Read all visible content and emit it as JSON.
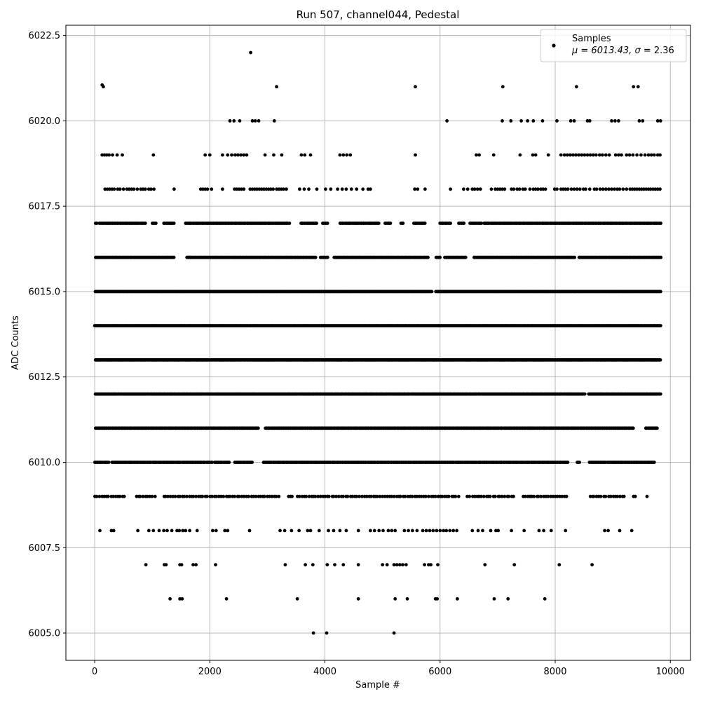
{
  "chart_data": {
    "type": "scatter",
    "title": "Run 507, channel044, Pedestal",
    "xlabel": "Sample #",
    "ylabel": "ADC Counts",
    "xlim": [
      -500,
      10350
    ],
    "ylim": [
      6004.2,
      6022.8
    ],
    "xticks": [
      0,
      2000,
      4000,
      6000,
      8000,
      10000
    ],
    "xtick_labels": [
      "0",
      "2000",
      "4000",
      "6000",
      "8000",
      "10000"
    ],
    "yticks": [
      6005.0,
      6007.5,
      6010.0,
      6012.5,
      6015.0,
      6017.5,
      6020.0,
      6022.5
    ],
    "ytick_labels": [
      "6005.0",
      "6007.5",
      "6010.0",
      "6012.5",
      "6015.0",
      "6017.5",
      "6020.0",
      "6022.5"
    ],
    "grid": true,
    "legend": {
      "placement": "top-right",
      "series_name": "Samples",
      "stats_prefix": "μ = 6013.43, ",
      "stats_sigma": "σ",
      "stats_suffix": " = 2.36"
    },
    "marker_color": "#000000",
    "n_samples": 9830,
    "mean": 6013.43,
    "sigma": 2.36,
    "series": [
      {
        "name": "Samples",
        "points": [
          [
            150,
            6021
          ],
          [
            2710,
            6022
          ],
          [
            3160,
            6021
          ],
          [
            5570,
            6021
          ],
          [
            7090,
            6021
          ],
          [
            8370,
            6021
          ],
          [
            9360,
            6021
          ],
          [
            9440,
            6021
          ],
          [
            2350,
            6020
          ],
          [
            2420,
            6020
          ],
          [
            2520,
            6020
          ],
          [
            2740,
            6020
          ],
          [
            2790,
            6020
          ],
          [
            2850,
            6020
          ],
          [
            3120,
            6020
          ],
          [
            6120,
            6020
          ],
          [
            7080,
            6020
          ],
          [
            7230,
            6020
          ],
          [
            7410,
            6020
          ],
          [
            7520,
            6020
          ],
          [
            7620,
            6020
          ],
          [
            7780,
            6020
          ],
          [
            8030,
            6020
          ],
          [
            8270,
            6020
          ],
          [
            8330,
            6020
          ],
          [
            8560,
            6020
          ],
          [
            8600,
            6020
          ],
          [
            8980,
            6020
          ],
          [
            9040,
            6020
          ],
          [
            9100,
            6020
          ],
          [
            9460,
            6020
          ],
          [
            9520,
            6020
          ],
          [
            9780,
            6020
          ],
          [
            9830,
            6020
          ],
          [
            3800,
            6005
          ],
          [
            4030,
            6005
          ],
          [
            5200,
            6005
          ],
          [
            1310,
            6006
          ],
          [
            1480,
            6006
          ],
          [
            1520,
            6006
          ],
          [
            2290,
            6006
          ],
          [
            3520,
            6006
          ],
          [
            4580,
            6006
          ],
          [
            5220,
            6006
          ],
          [
            5430,
            6006
          ],
          [
            5920,
            6006
          ],
          [
            5950,
            6006
          ],
          [
            6300,
            6006
          ],
          [
            6940,
            6006
          ],
          [
            7180,
            6006
          ],
          [
            7820,
            6006
          ],
          [
            890,
            6007
          ],
          [
            1210,
            6007
          ],
          [
            1240,
            6007
          ],
          [
            1480,
            6007
          ],
          [
            1510,
            6007
          ],
          [
            1710,
            6007
          ],
          [
            1760,
            6007
          ],
          [
            2100,
            6007
          ],
          [
            3310,
            6007
          ],
          [
            3660,
            6007
          ],
          [
            3790,
            6007
          ],
          [
            4040,
            6007
          ],
          [
            4170,
            6007
          ],
          [
            4320,
            6007
          ],
          [
            4580,
            6007
          ],
          [
            5000,
            6007
          ],
          [
            5080,
            6007
          ],
          [
            5200,
            6007
          ],
          [
            5250,
            6007
          ],
          [
            5300,
            6007
          ],
          [
            5350,
            6007
          ],
          [
            5410,
            6007
          ],
          [
            5730,
            6007
          ],
          [
            5800,
            6007
          ],
          [
            5840,
            6007
          ],
          [
            5960,
            6007
          ],
          [
            6780,
            6007
          ],
          [
            7290,
            6007
          ],
          [
            8070,
            6007
          ],
          [
            8640,
            6007
          ],
          [
            90,
            6008
          ],
          [
            290,
            6008
          ],
          [
            330,
            6008
          ],
          [
            750,
            6008
          ],
          [
            940,
            6008
          ],
          [
            1020,
            6008
          ],
          [
            1120,
            6008
          ],
          [
            1200,
            6008
          ],
          [
            1260,
            6008
          ],
          [
            1340,
            6008
          ],
          [
            1430,
            6008
          ],
          [
            1470,
            6008
          ],
          [
            1530,
            6008
          ],
          [
            1580,
            6008
          ],
          [
            1650,
            6008
          ],
          [
            1780,
            6008
          ],
          [
            2050,
            6008
          ],
          [
            2110,
            6008
          ],
          [
            2260,
            6008
          ],
          [
            2310,
            6008
          ],
          [
            2690,
            6008
          ],
          [
            3220,
            6008
          ],
          [
            3300,
            6008
          ],
          [
            3420,
            6008
          ],
          [
            3550,
            6008
          ],
          [
            3700,
            6008
          ],
          [
            3750,
            6008
          ],
          [
            3900,
            6008
          ],
          [
            4060,
            6008
          ],
          [
            4150,
            6008
          ],
          [
            4260,
            6008
          ],
          [
            4370,
            6008
          ],
          [
            4580,
            6008
          ],
          [
            4790,
            6008
          ],
          [
            4860,
            6008
          ],
          [
            4940,
            6008
          ],
          [
            5010,
            6008
          ],
          [
            5100,
            6008
          ],
          [
            5160,
            6008
          ],
          [
            5220,
            6008
          ],
          [
            5380,
            6008
          ],
          [
            5450,
            6008
          ],
          [
            5520,
            6008
          ],
          [
            5600,
            6008
          ],
          [
            5700,
            6008
          ],
          [
            5760,
            6008
          ],
          [
            5820,
            6008
          ],
          [
            5880,
            6008
          ],
          [
            5940,
            6008
          ],
          [
            6000,
            6008
          ],
          [
            6060,
            6008
          ],
          [
            6110,
            6008
          ],
          [
            6170,
            6008
          ],
          [
            6230,
            6008
          ],
          [
            6290,
            6008
          ],
          [
            6560,
            6008
          ],
          [
            6660,
            6008
          ],
          [
            6740,
            6008
          ],
          [
            6880,
            6008
          ],
          [
            6970,
            6008
          ],
          [
            7010,
            6008
          ],
          [
            7240,
            6008
          ],
          [
            7460,
            6008
          ],
          [
            7720,
            6008
          ],
          [
            7800,
            6008
          ],
          [
            7930,
            6008
          ],
          [
            8180,
            6008
          ],
          [
            8860,
            6008
          ],
          [
            8920,
            6008
          ],
          [
            9120,
            6008
          ],
          [
            9330,
            6008
          ],
          [
            130,
            6021.05
          ]
        ],
        "dense_bands": [
          {
            "y": 6009,
            "x_from": 0,
            "x_to": 9620,
            "spacing": 40,
            "gaps": [
              [
                560,
                720
              ],
              [
                1080,
                1190
              ],
              [
                3220,
                3350
              ],
              [
                3460,
                3500
              ],
              [
                6330,
                6460
              ],
              [
                7320,
                7420
              ],
              [
                8240,
                8560
              ],
              [
                9220,
                9330
              ],
              [
                9420,
                9570
              ]
            ]
          },
          {
            "y": 6010,
            "x_from": 0,
            "x_to": 9720,
            "spacing": 20,
            "gaps": [
              [
                260,
                300
              ],
              [
                2050,
                2080
              ],
              [
                2350,
                2430
              ],
              [
                2740,
                2930
              ],
              [
                8230,
                8370
              ],
              [
                8430,
                8580
              ]
            ]
          },
          {
            "y": 6011,
            "x_from": 0,
            "x_to": 9790,
            "spacing": 18,
            "gaps": [
              [
                2860,
                2950
              ],
              [
                9360,
                9560
              ]
            ]
          },
          {
            "y": 6012,
            "x_from": 0,
            "x_to": 9840,
            "spacing": 14,
            "gaps": [
              [
                8520,
                8580
              ]
            ]
          },
          {
            "y": 6013,
            "x_from": 0,
            "x_to": 9840,
            "spacing": 12,
            "gaps": []
          },
          {
            "y": 6014,
            "x_from": 0,
            "x_to": 9840,
            "spacing": 12,
            "gaps": []
          },
          {
            "y": 6015,
            "x_from": 0,
            "x_to": 9840,
            "spacing": 12,
            "gaps": [
              [
                5860,
                5920
              ]
            ]
          },
          {
            "y": 6016,
            "x_from": 0,
            "x_to": 9840,
            "spacing": 16,
            "gaps": [
              [
                1390,
                1600
              ],
              [
                3850,
                3920
              ],
              [
                4060,
                4150
              ],
              [
                5800,
                5920
              ],
              [
                6010,
                6080
              ],
              [
                6460,
                6580
              ],
              [
                8350,
                8410
              ]
            ]
          },
          {
            "y": 6017,
            "x_from": 0,
            "x_to": 9840,
            "spacing": 20,
            "gaps": [
              [
                40,
                70
              ],
              [
                880,
                980
              ],
              [
                1080,
                1180
              ],
              [
                1390,
                1560
              ],
              [
                3390,
                3560
              ],
              [
                3870,
                3950
              ],
              [
                4050,
                4250
              ],
              [
                4940,
                5040
              ],
              [
                5150,
                5300
              ],
              [
                5360,
                5540
              ],
              [
                5760,
                5980
              ],
              [
                6190,
                6300
              ],
              [
                6440,
                6520
              ],
              [
                6720,
                6760
              ]
            ]
          }
        ],
        "sparse_bands": [
          {
            "y": 6018,
            "xs": [
              180,
              220,
              260,
              300,
              340,
              400,
              440,
              500,
              560,
              600,
              640,
              680,
              740,
              800,
              840,
              880,
              940,
              980,
              1030,
              1380,
              1840,
              1880,
              1920,
              1960,
              2030,
              2220,
              2430,
              2470,
              2510,
              2550,
              2590,
              2700,
              2740,
              2780,
              2820,
              2860,
              2900,
              2940,
              2980,
              3020,
              3060,
              3100,
              3160,
              3200,
              3240,
              3280,
              3330,
              3560,
              3640,
              3720,
              3860,
              4010,
              4100,
              4220,
              4300,
              4370,
              4460,
              4550,
              4660,
              4750,
              4790,
              5560,
              5610,
              5740,
              6180,
              6410,
              6480,
              6560,
              6600,
              6650,
              6700,
              6890,
              6960,
              7000,
              7040,
              7080,
              7120,
              7240,
              7280,
              7340,
              7380,
              7440,
              7480,
              7560,
              7620,
              7660,
              7700,
              7750,
              7790,
              7830,
              7990,
              8030,
              8100,
              8140,
              8180,
              8220,
              8280,
              8330,
              8380,
              8430,
              8490,
              8530,
              8600,
              8680,
              8720,
              8780,
              8830,
              8880,
              8930,
              8980,
              9030,
              9080,
              9120,
              9180,
              9240,
              9300,
              9340,
              9380,
              9420,
              9460,
              9500,
              9540,
              9580,
              9620,
              9660,
              9700,
              9740,
              9780,
              9820
            ]
          },
          {
            "y": 6019,
            "xs": [
              130,
              170,
              210,
              250,
              310,
              390,
              480,
              1020,
              1920,
              2000,
              2220,
              2310,
              2380,
              2440,
              2490,
              2540,
              2590,
              2640,
              2960,
              3110,
              3250,
              3590,
              3650,
              3750,
              4260,
              4320,
              4380,
              4440,
              5570,
              6630,
              6680,
              6930,
              7390,
              7610,
              7660,
              7880,
              8100,
              8160,
              8210,
              8260,
              8310,
              8360,
              8410,
              8460,
              8510,
              8560,
              8610,
              8660,
              8710,
              8770,
              8820,
              8880,
              8940,
              9050,
              9100,
              9150,
              9240,
              9290,
              9350,
              9420,
              9490,
              9560,
              9620,
              9670,
              9720,
              9780,
              9820
            ]
          }
        ]
      }
    ]
  }
}
